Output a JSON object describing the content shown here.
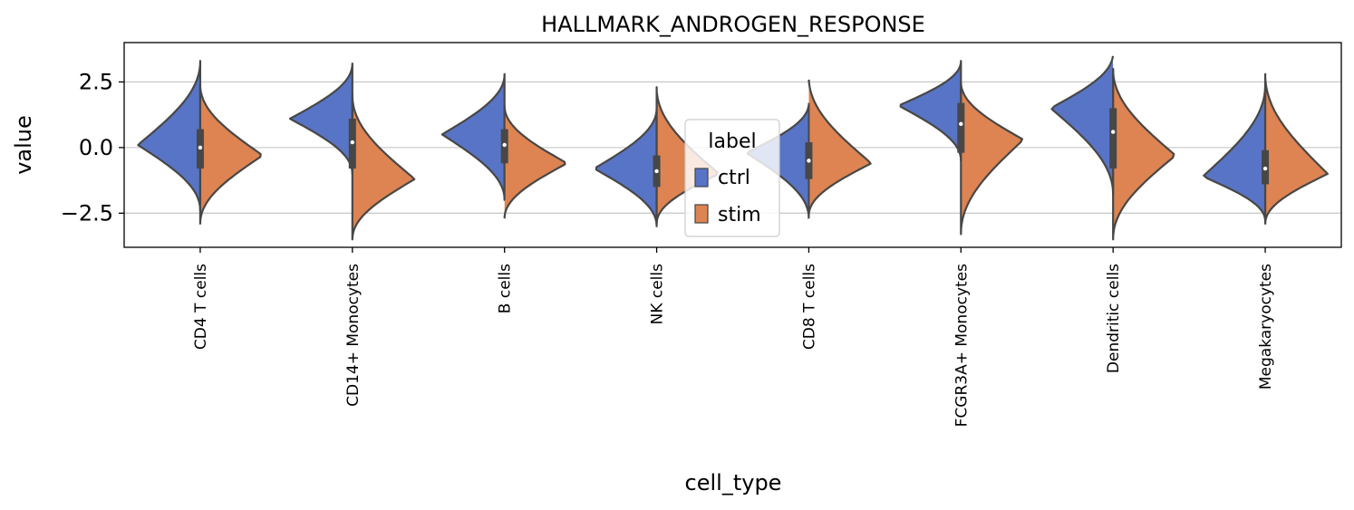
{
  "chart_data": {
    "type": "violin",
    "title": "HALLMARK_ANDROGEN_RESPONSE",
    "xlabel": "cell_type",
    "ylabel": "value",
    "ylim": [
      -3.8,
      4.0
    ],
    "yticks": [
      2.5,
      0.0,
      -2.5
    ],
    "ytick_labels": [
      "2.5",
      "0.0",
      "−2.5"
    ],
    "grid": "horizontal",
    "split": true,
    "legend": {
      "title": "label",
      "placement": "center",
      "entries": [
        {
          "name": "ctrl",
          "color": "#5874c6"
        },
        {
          "name": "stim",
          "color": "#dd8452"
        }
      ]
    },
    "categories": [
      "CD4 T cells",
      "CD14+ Monocytes",
      "B cells",
      "NK cells",
      "CD8 T cells",
      "FCGR3A+ Monocytes",
      "Dendritic cells",
      "Megakaryocytes"
    ],
    "series": [
      {
        "name": "ctrl",
        "color": "#5874c6",
        "violins": [
          {
            "min": -2.4,
            "max": 3.3,
            "mode": 0.1,
            "q1": -0.8,
            "median": 0.0,
            "q3": 0.7,
            "width": 1.0
          },
          {
            "min": -1.0,
            "max": 3.2,
            "mode": 1.1,
            "q1": -0.8,
            "median": 0.2,
            "q3": 1.1,
            "width": 1.0
          },
          {
            "min": -2.0,
            "max": 2.8,
            "mode": 0.5,
            "q1": -0.6,
            "median": 0.1,
            "q3": 0.7,
            "width": 1.0
          },
          {
            "min": -3.0,
            "max": 1.5,
            "mode": -0.8,
            "q1": -1.5,
            "median": -0.9,
            "q3": -0.3,
            "width": 1.0
          },
          {
            "min": -2.7,
            "max": 1.7,
            "mode": -0.2,
            "q1": -1.2,
            "median": -0.5,
            "q3": 0.2,
            "width": 1.0
          },
          {
            "min": -0.5,
            "max": 3.3,
            "mode": 1.6,
            "q1": -0.2,
            "median": 0.9,
            "q3": 1.7,
            "width": 1.0
          },
          {
            "min": -1.8,
            "max": 3.6,
            "mode": 1.5,
            "q1": -0.8,
            "median": 0.6,
            "q3": 1.5,
            "width": 1.0
          },
          {
            "min": -2.8,
            "max": 2.4,
            "mode": -1.1,
            "q1": -1.4,
            "median": -0.8,
            "q3": -0.1,
            "width": 1.0
          }
        ]
      },
      {
        "name": "stim",
        "color": "#dd8452",
        "violins": [
          {
            "min": -2.9,
            "max": 2.4,
            "mode": -0.3,
            "q1": -0.8,
            "median": 0.0,
            "q3": 0.7,
            "width": 1.0
          },
          {
            "min": -3.5,
            "max": 2.0,
            "mode": -1.2,
            "q1": -0.8,
            "median": 0.2,
            "q3": 1.1,
            "width": 1.0
          },
          {
            "min": -2.7,
            "max": 1.6,
            "mode": -0.6,
            "q1": -0.6,
            "median": 0.1,
            "q3": 0.7,
            "width": 1.0
          },
          {
            "min": -2.9,
            "max": 2.3,
            "mode": -1.0,
            "q1": -1.5,
            "median": -0.9,
            "q3": -0.3,
            "width": 1.0
          },
          {
            "min": -2.6,
            "max": 2.7,
            "mode": -0.6,
            "q1": -1.2,
            "median": -0.5,
            "q3": 0.2,
            "width": 1.0
          },
          {
            "min": -3.3,
            "max": 2.5,
            "mode": 0.3,
            "q1": -0.2,
            "median": 0.9,
            "q3": 1.7,
            "width": 1.0
          },
          {
            "min": -3.5,
            "max": 3.0,
            "mode": -0.3,
            "q1": -0.8,
            "median": 0.6,
            "q3": 1.5,
            "width": 1.0
          },
          {
            "min": -2.9,
            "max": 2.8,
            "mode": -1.0,
            "q1": -1.4,
            "median": -0.8,
            "q3": -0.1,
            "width": 1.0
          }
        ]
      }
    ]
  }
}
